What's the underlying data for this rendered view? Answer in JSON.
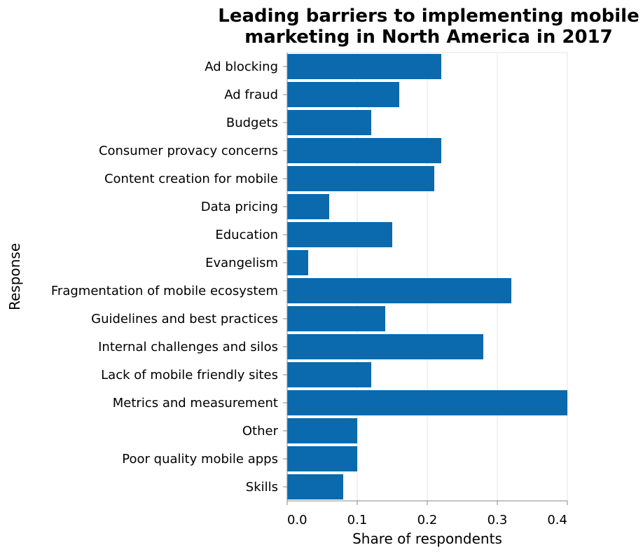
{
  "chart_data": {
    "type": "bar",
    "orientation": "horizontal",
    "title": "Leading barriers to implementing mobile marketing in North America in 2017",
    "title_lines": [
      "Leading barriers to implementing mobile",
      "marketing in North America in 2017"
    ],
    "xlabel": "Share of respondents",
    "ylabel": "Response",
    "categories": [
      "Ad blocking",
      "Ad fraud",
      "Budgets",
      "Consumer provacy concerns",
      "Content creation for mobile",
      "Data pricing",
      "Education",
      "Evangelism",
      "Fragmentation of mobile ecosystem",
      "Guidelines and best practices",
      "Internal challenges and silos",
      "Lack of mobile friendly sites",
      "Metrics and measurement",
      "Other",
      "Poor quality mobile apps",
      "Skills"
    ],
    "values": [
      0.22,
      0.16,
      0.12,
      0.22,
      0.21,
      0.06,
      0.15,
      0.03,
      0.32,
      0.14,
      0.28,
      0.12,
      0.4,
      0.1,
      0.1,
      0.08
    ],
    "xlim": [
      0,
      0.4
    ],
    "xticks": [
      0.0,
      0.1,
      0.2,
      0.3,
      0.4
    ],
    "xtick_labels": [
      "0.0",
      "0.1",
      "0.2",
      "0.3",
      "0.4"
    ],
    "grid": true,
    "legend": "none",
    "colors": {
      "bar": "#0a6aad",
      "grid": "#e6e6e6",
      "axis": "#888888"
    }
  }
}
